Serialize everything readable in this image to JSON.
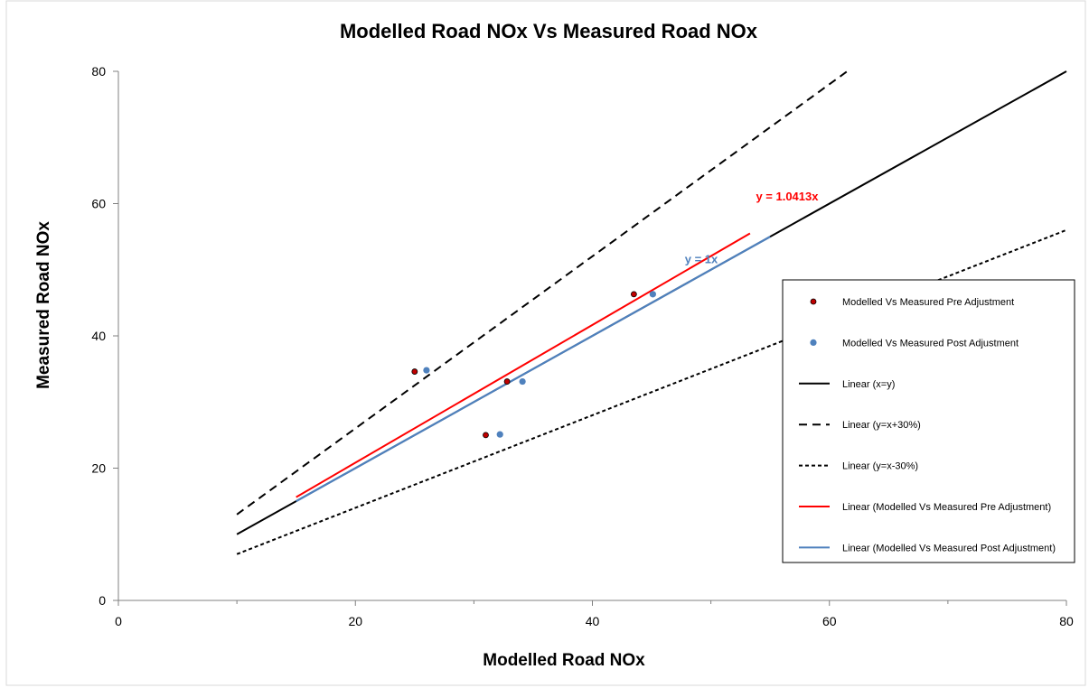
{
  "chart_data": {
    "type": "scatter",
    "title": "Modelled Road NOx Vs Measured Road NOx",
    "xlabel": "Modelled Road NOx",
    "ylabel": "Measured Road NOx",
    "xlim": [
      0,
      80
    ],
    "ylim": [
      0,
      80
    ],
    "xticks": [
      "0",
      "20",
      "40",
      "60",
      "80"
    ],
    "yticks": [
      "0",
      "20",
      "40",
      "60",
      "80"
    ],
    "grid": false,
    "legend_position": "right",
    "series": [
      {
        "name": "Modelled Vs Measured Pre Adjustment",
        "kind": "scatter",
        "color": "#c00000",
        "points": [
          [
            25.0,
            34.6
          ],
          [
            32.8,
            33.1
          ],
          [
            31.0,
            25.0
          ],
          [
            43.5,
            46.3
          ]
        ]
      },
      {
        "name": "Modelled Vs Measured Post Adjustment",
        "kind": "scatter",
        "color": "#4f81bd",
        "points": [
          [
            26.0,
            34.8
          ],
          [
            34.1,
            33.1
          ],
          [
            32.2,
            25.1
          ],
          [
            45.1,
            46.3
          ]
        ]
      },
      {
        "name": "Linear (x=y)",
        "kind": "line",
        "color": "#000000",
        "dash": "",
        "points": [
          [
            10,
            10
          ],
          [
            80,
            80
          ]
        ]
      },
      {
        "name": "Linear (y=x+30%)",
        "kind": "line",
        "color": "#000000",
        "dash": "9,6",
        "points": [
          [
            10,
            13
          ],
          [
            61.5,
            80
          ]
        ]
      },
      {
        "name": "Linear (y=x-30%)",
        "kind": "line",
        "color": "#000000",
        "dash": "4,3",
        "points": [
          [
            10,
            7
          ],
          [
            80,
            56
          ]
        ]
      },
      {
        "name": "Linear (Modelled Vs Measured Pre Adjustment)",
        "kind": "line",
        "color": "#ff0000",
        "dash": "",
        "points": [
          [
            15,
            15.62
          ],
          [
            53.3,
            55.5
          ]
        ]
      },
      {
        "name": "Linear (Modelled Vs Measured Post Adjustment)",
        "kind": "line",
        "color": "#4f81bd",
        "dash": "",
        "points": [
          [
            15,
            15
          ],
          [
            55,
            55
          ]
        ]
      }
    ],
    "annotations": [
      {
        "text": "y = 1.0413x",
        "color": "#ff0000",
        "x": 53.8,
        "y": 60.5
      },
      {
        "text": "y = 1x",
        "color": "#4f81bd",
        "x": 47.8,
        "y": 51.0
      }
    ]
  }
}
